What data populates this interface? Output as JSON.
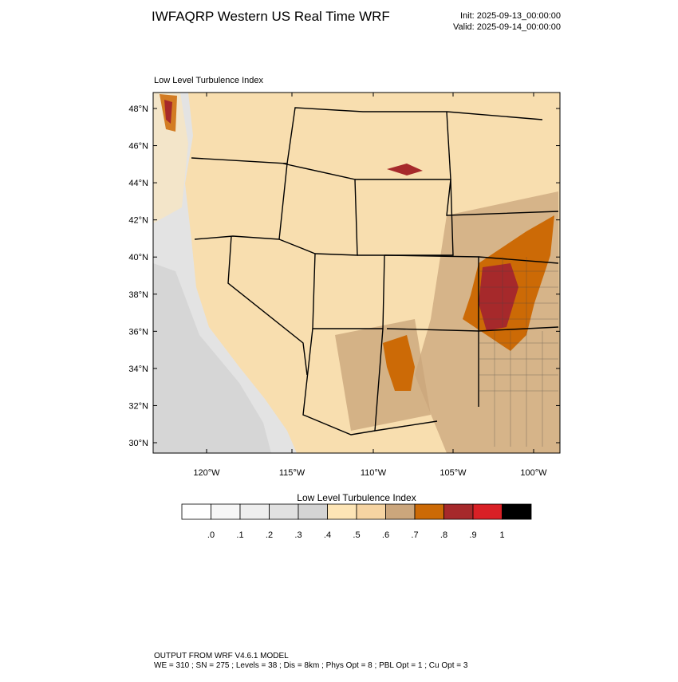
{
  "header": {
    "title": "IWFAQRP Western US Real Time WRF",
    "init": "Init: 2025-09-13_00:00:00",
    "valid": "Valid: 2025-09-14_00:00:00"
  },
  "map": {
    "title": "Low Level Turbulence Index",
    "lat_ticks": [
      "48°N",
      "46°N",
      "44°N",
      "42°N",
      "40°N",
      "38°N",
      "36°N",
      "34°N",
      "32°N",
      "30°N"
    ],
    "lon_ticks": [
      "120°W",
      "115°W",
      "110°W",
      "105°W",
      "100°W"
    ]
  },
  "colorbar": {
    "title": "Low Level Turbulence Index",
    "colors": [
      "#ffffff",
      "#f6f6f6",
      "#eeeeee",
      "#e1e1e1",
      "#d4d4d4",
      "#fde5b6",
      "#f6d4a2",
      "#cba67c",
      "#cc6a06",
      "#a6292b",
      "#d92026",
      "#000000"
    ],
    "labels": [
      ".0",
      ".1",
      ".2",
      ".3",
      ".4",
      ".5",
      ".6",
      ".7",
      ".8",
      ".9",
      "1"
    ]
  },
  "footer": {
    "line1": "OUTPUT FROM WRF V4.6.1 MODEL",
    "line2": "WE = 310 ; SN = 275 ; Levels = 38 ; Dis = 8km ; Phys Opt = 8 ; PBL Opt = 1 ; Cu Opt = 3"
  }
}
